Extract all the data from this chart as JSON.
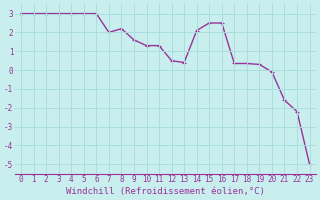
{
  "xlabel": "Windchill (Refroidissement éolien,°C)",
  "x": [
    0,
    1,
    2,
    3,
    4,
    5,
    6,
    7,
    8,
    9,
    10,
    11,
    12,
    13,
    14,
    15,
    16,
    17,
    18,
    19,
    20,
    21,
    22,
    23
  ],
  "y": [
    3,
    3,
    3,
    3,
    3,
    3,
    3,
    2.0,
    2.2,
    1.6,
    1.3,
    1.3,
    0.5,
    0.4,
    2.1,
    2.5,
    2.5,
    0.35,
    0.35,
    0.3,
    -0.1,
    -1.6,
    -2.2,
    -5.0
  ],
  "line_color": "#993399",
  "marker": "+",
  "bg_color": "#c8eeee",
  "grid_color": "#aadddd",
  "xlim": [
    -0.5,
    23.5
  ],
  "ylim": [
    -5.5,
    3.5
  ],
  "yticks": [
    -5,
    -4,
    -3,
    -2,
    -1,
    0,
    1,
    2,
    3
  ],
  "xticks": [
    0,
    1,
    2,
    3,
    4,
    5,
    6,
    7,
    8,
    9,
    10,
    11,
    12,
    13,
    14,
    15,
    16,
    17,
    18,
    19,
    20,
    21,
    22,
    23
  ],
  "tick_fontsize": 5.5,
  "xlabel_fontsize": 6.5,
  "axis_label_color": "#993399",
  "line_width": 1.0,
  "marker_size": 3.5
}
